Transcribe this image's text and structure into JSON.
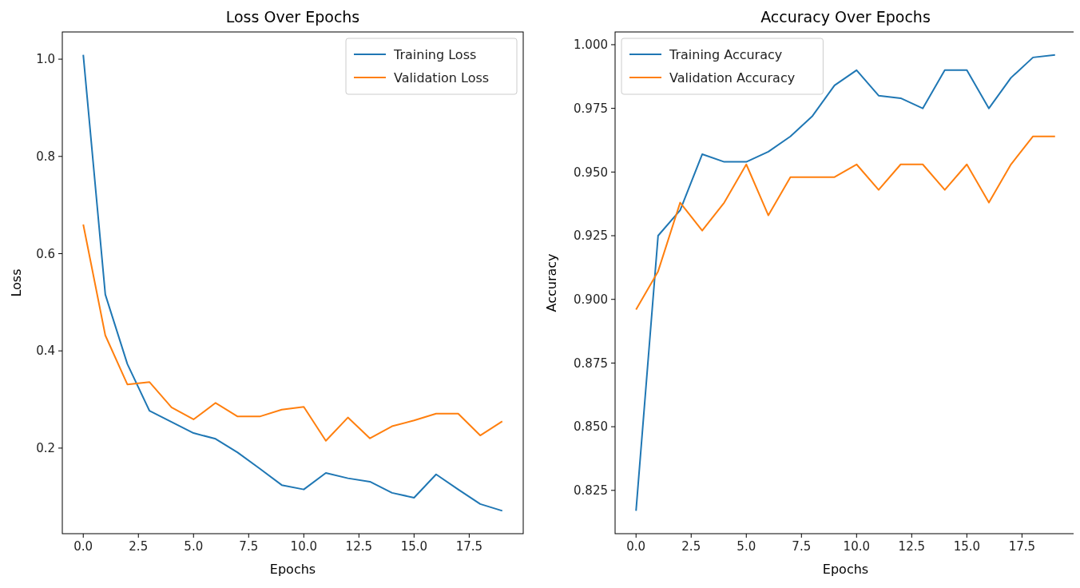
{
  "chart_data": [
    {
      "type": "line",
      "title": "Loss Over Epochs",
      "xlabel": "Epochs",
      "ylabel": "Loss",
      "x": [
        0,
        1,
        2,
        3,
        4,
        5,
        6,
        7,
        8,
        9,
        10,
        11,
        12,
        13,
        14,
        15,
        16,
        17,
        18,
        19
      ],
      "xlim": [
        -0.95,
        19.95
      ],
      "xticks": [
        {
          "value": 0,
          "label": "0.0"
        },
        {
          "value": 2.5,
          "label": "2.5"
        },
        {
          "value": 5,
          "label": "5.0"
        },
        {
          "value": 7.5,
          "label": "7.5"
        },
        {
          "value": 10,
          "label": "10.0"
        },
        {
          "value": 12.5,
          "label": "12.5"
        },
        {
          "value": 15,
          "label": "15.0"
        },
        {
          "value": 17.5,
          "label": "17.5"
        }
      ],
      "ylim": [
        0.024,
        1.056
      ],
      "yticks": [
        0.2,
        0.4,
        0.6,
        0.8,
        {
          "value": 1,
          "label": "1.0"
        }
      ],
      "legend": "top right",
      "grid": false,
      "marker": "none",
      "line_style": "solid",
      "series": [
        {
          "name": "Training Loss",
          "color": "#1f77b4",
          "values": [
            1.009,
            0.516,
            0.373,
            0.277,
            0.254,
            0.231,
            0.219,
            0.191,
            0.158,
            0.124,
            0.115,
            0.149,
            0.138,
            0.131,
            0.108,
            0.098,
            0.146,
            0.115,
            0.085,
            0.071
          ]
        },
        {
          "name": "Validation Loss",
          "color": "#ff7f0e",
          "values": [
            0.66,
            0.432,
            0.331,
            0.336,
            0.284,
            0.259,
            0.293,
            0.265,
            0.265,
            0.279,
            0.285,
            0.215,
            0.263,
            0.22,
            0.245,
            0.257,
            0.271,
            0.271,
            0.226,
            0.255
          ]
        }
      ]
    },
    {
      "type": "line",
      "title": "Accuracy Over Epochs",
      "xlabel": "Epochs",
      "ylabel": "Accuracy",
      "x": [
        0,
        1,
        2,
        3,
        4,
        5,
        6,
        7,
        8,
        9,
        10,
        11,
        12,
        13,
        14,
        15,
        16,
        17,
        18,
        19
      ],
      "xlim": [
        -0.95,
        19.95
      ],
      "xticks": [
        {
          "value": 0,
          "label": "0.0"
        },
        {
          "value": 2.5,
          "label": "2.5"
        },
        {
          "value": 5,
          "label": "5.0"
        },
        {
          "value": 7.5,
          "label": "7.5"
        },
        {
          "value": 10,
          "label": "10.0"
        },
        {
          "value": 12.5,
          "label": "12.5"
        },
        {
          "value": 15,
          "label": "15.0"
        },
        {
          "value": 17.5,
          "label": "17.5"
        }
      ],
      "ylim": [
        0.808,
        1.005
      ],
      "yticks": [
        0.825,
        {
          "value": 0.85,
          "label": "0.850"
        },
        0.875,
        {
          "value": 0.9,
          "label": "0.900"
        },
        0.925,
        {
          "value": 0.95,
          "label": "0.950"
        },
        0.975,
        {
          "value": 1,
          "label": "1.000"
        }
      ],
      "legend": "top left",
      "grid": false,
      "marker": "none",
      "line_style": "solid",
      "series": [
        {
          "name": "Training Accuracy",
          "color": "#1f77b4",
          "values": [
            0.817,
            0.925,
            0.935,
            0.957,
            0.954,
            0.954,
            0.958,
            0.964,
            0.972,
            0.984,
            0.99,
            0.98,
            0.979,
            0.975,
            0.99,
            0.99,
            0.975,
            0.987,
            0.995,
            0.996
          ]
        },
        {
          "name": "Validation Accuracy",
          "color": "#ff7f0e",
          "values": [
            0.896,
            0.911,
            0.938,
            0.927,
            0.938,
            0.953,
            0.933,
            0.948,
            0.948,
            0.948,
            0.953,
            0.943,
            0.953,
            0.953,
            0.943,
            0.953,
            0.938,
            0.953,
            0.964,
            0.964
          ]
        }
      ]
    }
  ]
}
